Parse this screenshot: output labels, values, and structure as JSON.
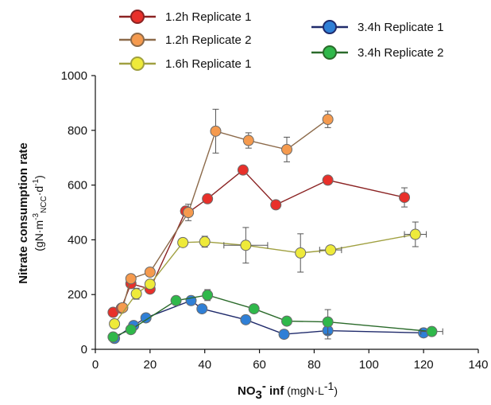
{
  "chart_data": {
    "type": "scatter",
    "xlabel": {
      "bold": "NO",
      "sub": "3",
      "sup": "-",
      "bold_end": " inf",
      "unit": " (mgN·L",
      "unit_sup": "-1",
      "unit_end": ")"
    },
    "ylabel": {
      "line1": "Nitrate consumption rate",
      "line2_a": "(gN·m",
      "line2_sup1": "-3",
      "line2_sub": "NCC",
      "line2_b": "·d",
      "line2_sup2": "-1",
      "line2_c": ")"
    },
    "xlim": [
      0,
      140
    ],
    "ylim": [
      0,
      1000
    ],
    "x_ticks": [
      0,
      20,
      40,
      60,
      80,
      100,
      120,
      140
    ],
    "y_ticks": [
      0,
      200,
      400,
      600,
      800,
      1000
    ],
    "x_tick_labels": [
      "0",
      "20",
      "40",
      "60",
      "80",
      "100",
      "120",
      "140"
    ],
    "y_tick_labels": [
      "0",
      "200",
      "400",
      "600",
      "800",
      "1000"
    ],
    "grid": false,
    "series": [
      {
        "name": "1.2h Replicate 1",
        "line_color": "#8b2323",
        "fill": "#e8302a",
        "points": [
          {
            "x": 6.5,
            "y": 135,
            "yerr": 0,
            "xerr": 0
          },
          {
            "x": 9.5,
            "y": 150,
            "yerr": 0,
            "xerr": 0
          },
          {
            "x": 13,
            "y": 240,
            "yerr": 0,
            "xerr": 0
          },
          {
            "x": 20,
            "y": 220,
            "yerr": 0,
            "xerr": 0
          },
          {
            "x": 33,
            "y": 505,
            "yerr": 0,
            "xerr": 0
          },
          {
            "x": 34,
            "y": 500,
            "yerr": 0,
            "xerr": 0
          },
          {
            "x": 41,
            "y": 550,
            "yerr": 0,
            "xerr": 0
          },
          {
            "x": 54,
            "y": 655,
            "yerr": 15,
            "xerr": 0
          },
          {
            "x": 66,
            "y": 528,
            "yerr": 0,
            "xerr": 0
          },
          {
            "x": 85,
            "y": 618,
            "yerr": 0,
            "xerr": 0
          },
          {
            "x": 113,
            "y": 555,
            "yerr": 35,
            "xerr": 0
          }
        ]
      },
      {
        "name": "1.2h Replicate 2",
        "line_color": "#8c6a4a",
        "fill": "#f59a4e",
        "points": [
          {
            "x": 10,
            "y": 152,
            "yerr": 0,
            "xerr": 0
          },
          {
            "x": 13,
            "y": 258,
            "yerr": 0,
            "xerr": 0
          },
          {
            "x": 20,
            "y": 282,
            "yerr": 0,
            "xerr": 0
          },
          {
            "x": 34,
            "y": 500,
            "yerr": 30,
            "xerr": 0
          },
          {
            "x": 44,
            "y": 797,
            "yerr": 80,
            "xerr": 0
          },
          {
            "x": 56,
            "y": 763,
            "yerr": 28,
            "xerr": 0
          },
          {
            "x": 70,
            "y": 730,
            "yerr": 45,
            "xerr": 0
          },
          {
            "x": 85,
            "y": 840,
            "yerr": 30,
            "xerr": 0
          }
        ]
      },
      {
        "name": "1.6h Replicate 1",
        "line_color": "#a0a040",
        "fill": "#eeea3a",
        "points": [
          {
            "x": 7,
            "y": 93,
            "yerr": 0,
            "xerr": 0
          },
          {
            "x": 15,
            "y": 203,
            "yerr": 20,
            "xerr": 0
          },
          {
            "x": 20,
            "y": 238,
            "yerr": 0,
            "xerr": 0
          },
          {
            "x": 32,
            "y": 390,
            "yerr": 0,
            "xerr": 0
          },
          {
            "x": 40,
            "y": 393,
            "yerr": 20,
            "xerr": 0
          },
          {
            "x": 55,
            "y": 380,
            "yerr": 65,
            "xerr": 8
          },
          {
            "x": 75,
            "y": 352,
            "yerr": 70,
            "xerr": 0
          },
          {
            "x": 86,
            "y": 363,
            "yerr": 12,
            "xerr": 4
          },
          {
            "x": 117,
            "y": 420,
            "yerr": 45,
            "xerr": 4
          }
        ]
      },
      {
        "name": "3.4h Replicate 1",
        "line_color": "#1f2a6b",
        "fill": "#2f7fd6",
        "points": [
          {
            "x": 7,
            "y": 40,
            "yerr": 0,
            "xerr": 0
          },
          {
            "x": 14,
            "y": 87,
            "yerr": 0,
            "xerr": 0
          },
          {
            "x": 18.5,
            "y": 115,
            "yerr": 0,
            "xerr": 0
          },
          {
            "x": 35,
            "y": 178,
            "yerr": 0,
            "xerr": 0
          },
          {
            "x": 39,
            "y": 148,
            "yerr": 0,
            "xerr": 0
          },
          {
            "x": 55,
            "y": 108,
            "yerr": 0,
            "xerr": 0
          },
          {
            "x": 69,
            "y": 55,
            "yerr": 0,
            "xerr": 0
          },
          {
            "x": 85,
            "y": 68,
            "yerr": 30,
            "xerr": 0
          },
          {
            "x": 120,
            "y": 60,
            "yerr": 0,
            "xerr": 0
          }
        ]
      },
      {
        "name": "3.4h Replicate 2",
        "line_color": "#2a6a2a",
        "fill": "#2fb84a",
        "points": [
          {
            "x": 6.5,
            "y": 45,
            "yerr": 0,
            "xerr": 0
          },
          {
            "x": 13,
            "y": 72,
            "yerr": 0,
            "xerr": 0
          },
          {
            "x": 29.5,
            "y": 178,
            "yerr": 15,
            "xerr": 0
          },
          {
            "x": 41,
            "y": 198,
            "yerr": 20,
            "xerr": 0
          },
          {
            "x": 58,
            "y": 148,
            "yerr": 0,
            "xerr": 0
          },
          {
            "x": 70,
            "y": 103,
            "yerr": 15,
            "xerr": 0
          },
          {
            "x": 85,
            "y": 100,
            "yerr": 45,
            "xerr": 0
          },
          {
            "x": 123,
            "y": 65,
            "yerr": 12,
            "xerr": 4
          }
        ]
      }
    ]
  }
}
